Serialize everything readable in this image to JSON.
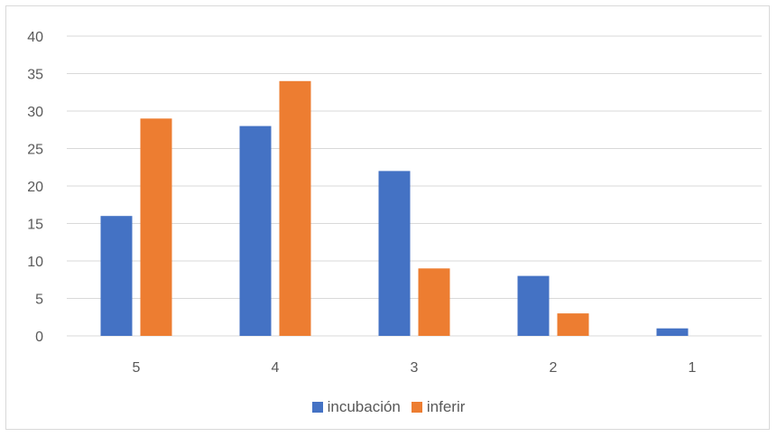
{
  "chart_data": {
    "type": "bar",
    "categories": [
      "5",
      "4",
      "3",
      "2",
      "1"
    ],
    "series": [
      {
        "name": "incubación",
        "color": "#4472C4",
        "values": [
          16,
          28,
          22,
          8,
          1
        ]
      },
      {
        "name": "inferir",
        "color": "#ED7D31",
        "values": [
          29,
          34,
          9,
          3,
          0
        ]
      }
    ],
    "ylim": [
      0,
      40
    ],
    "yticks": [
      0,
      5,
      10,
      15,
      20,
      25,
      30,
      35,
      40
    ],
    "grid": true,
    "legend_position": "bottom"
  }
}
